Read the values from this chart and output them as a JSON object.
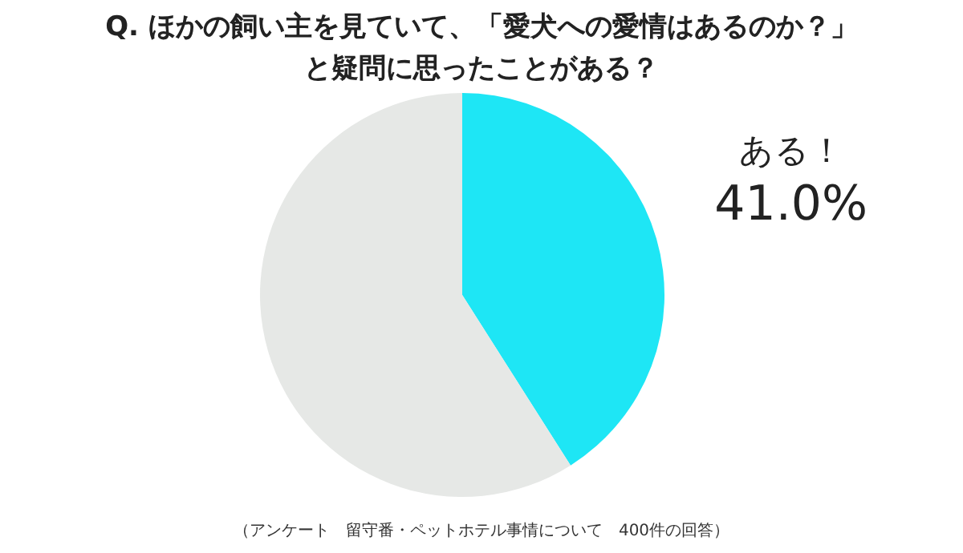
{
  "chart_data": {
    "type": "pie",
    "title": "Q.  ほかの飼い主を見ていて、「愛犬への愛情はあるのか？」と疑問に思ったことがある？",
    "categories": [
      "ある！",
      null
    ],
    "values": [
      41.0,
      59.0
    ],
    "value_labels": [
      "41.0%",
      null
    ],
    "colors": [
      "#1ee6f5",
      "#e6e8e6"
    ],
    "annotations": [
      "（アンケート　留守番・ペットホテル事情について　400件の回答）"
    ]
  }
}
